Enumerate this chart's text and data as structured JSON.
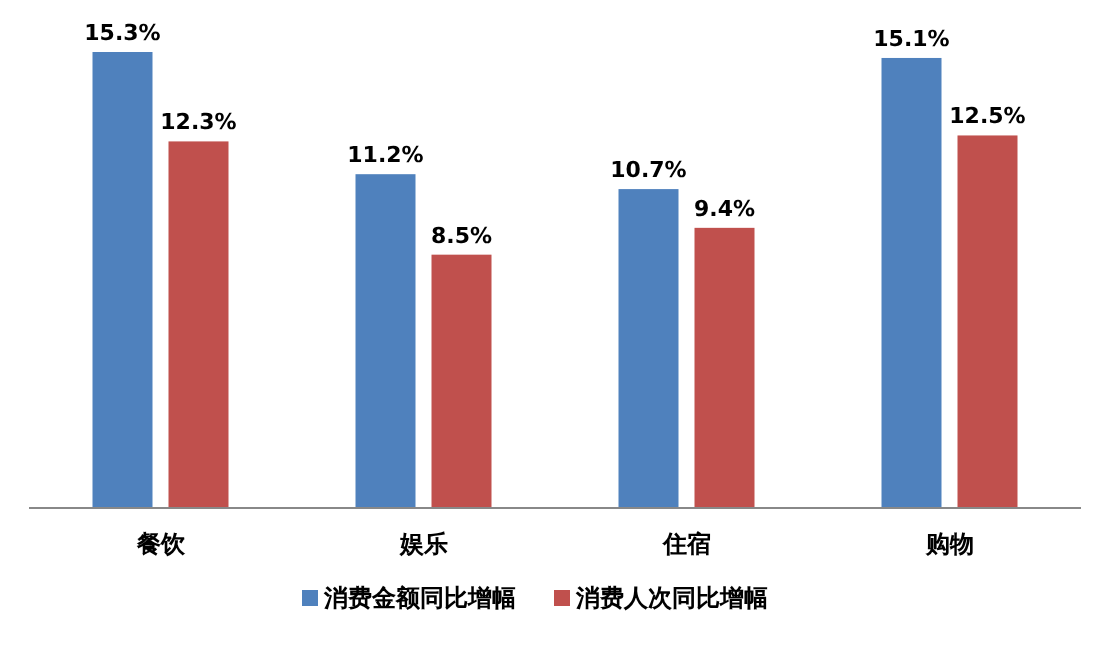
{
  "chart_data": {
    "type": "bar",
    "categories": [
      "餐饮",
      "娱乐",
      "住宿",
      "购物"
    ],
    "series": [
      {
        "name": "消费金额同比增幅",
        "color": "#4f81bd",
        "values": [
          15.3,
          11.2,
          10.7,
          15.1
        ],
        "value_labels": [
          "15.3%",
          "11.2%",
          "10.7%",
          "15.1%"
        ]
      },
      {
        "name": "消费人次同比增幅",
        "color": "#c0504d",
        "values": [
          12.3,
          8.5,
          9.4,
          12.5
        ],
        "value_labels": [
          "12.3%",
          "8.5%",
          "9.4%",
          "12.5%"
        ]
      }
    ],
    "tick_labels": "x",
    "legend": "bottom"
  }
}
